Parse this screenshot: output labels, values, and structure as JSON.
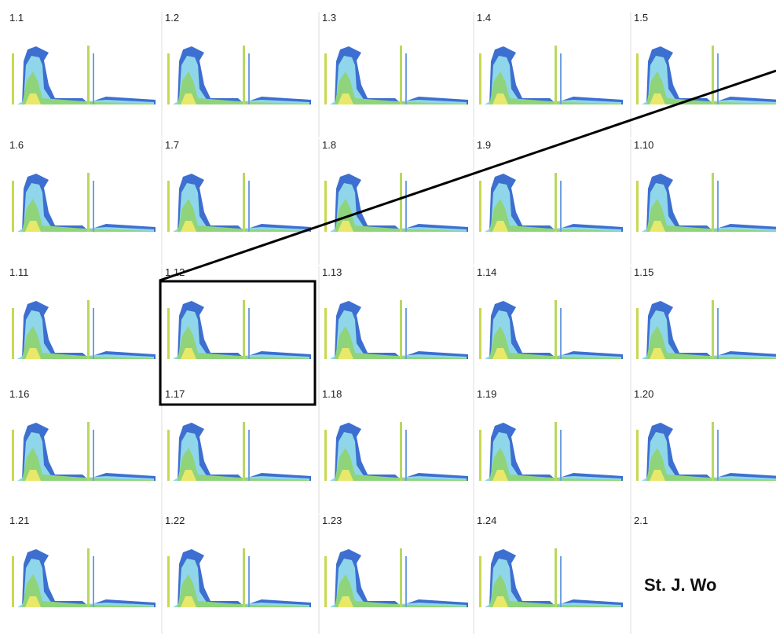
{
  "panels": [
    "1.1",
    "1.2",
    "1.3",
    "1.4",
    "1.5",
    "1.6",
    "1.7",
    "1.8",
    "1.9",
    "1.10",
    "1.11",
    "1.12",
    "1.13",
    "1.14",
    "1.15",
    "1.16",
    "1.17",
    "1.18",
    "1.19",
    "1.20",
    "1.21",
    "1.22",
    "1.23",
    "1.24",
    "2.1"
  ],
  "note": "St. J. Wo"
}
